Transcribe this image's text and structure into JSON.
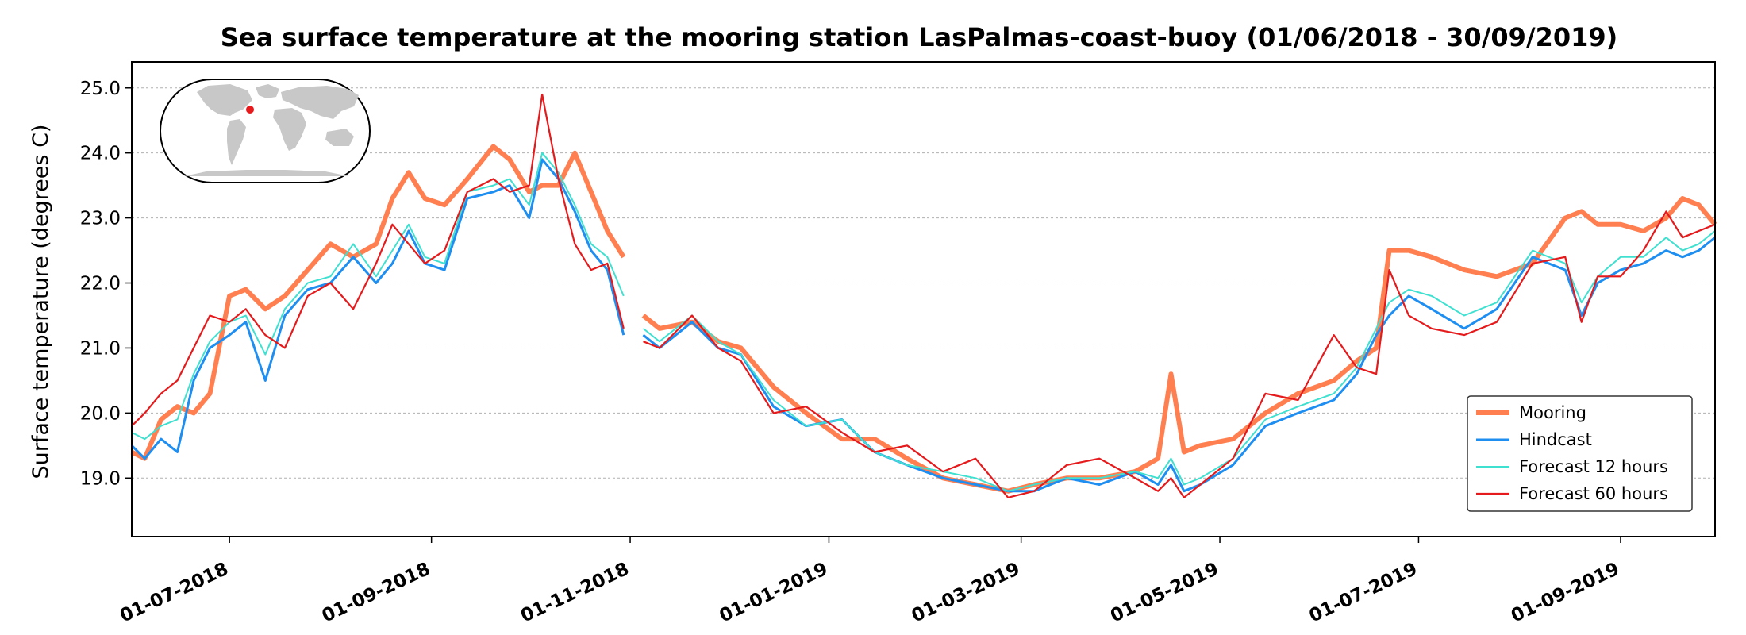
{
  "chart_data": {
    "type": "line",
    "title": "Sea surface temperature at the mooring station LasPalmas-coast-buoy (01/06/2018 - 30/09/2019)",
    "ylabel": "Surface temperature (degrees C)",
    "xlabel": "",
    "xlim": [
      "2018-06-01",
      "2019-09-30"
    ],
    "ylim": [
      18.1,
      25.4
    ],
    "yticks": [
      19.0,
      20.0,
      21.0,
      22.0,
      23.0,
      24.0,
      25.0
    ],
    "ytick_labels": [
      "19.0",
      "20.0",
      "21.0",
      "22.0",
      "23.0",
      "24.0",
      "25.0"
    ],
    "xticks": [
      "2018-07-01",
      "2018-09-01",
      "2018-11-01",
      "2019-01-01",
      "2019-03-01",
      "2019-05-01",
      "2019-07-01",
      "2019-09-01"
    ],
    "xtick_labels": [
      "01-07-2018",
      "01-09-2018",
      "01-11-2018",
      "01-01-2019",
      "01-03-2019",
      "01-05-2019",
      "01-07-2019",
      "01-09-2019"
    ],
    "grid": "horizontal dotted",
    "legend_position": "lower right",
    "inset_map": {
      "marker": "Las Palmas (Canary Islands)",
      "marker_color": "#e41a1c"
    },
    "series": [
      {
        "name": "Mooring",
        "color": "#ff7f50",
        "x": [
          "2018-06-01",
          "2018-06-05",
          "2018-06-10",
          "2018-06-15",
          "2018-06-20",
          "2018-06-25",
          "2018-07-01",
          "2018-07-06",
          "2018-07-12",
          "2018-07-18",
          "2018-07-25",
          "2018-08-01",
          "2018-08-08",
          "2018-08-15",
          "2018-08-20",
          "2018-08-25",
          "2018-08-30",
          "2018-09-05",
          "2018-09-12",
          "2018-09-20",
          "2018-09-25",
          "2018-10-01",
          "2018-10-05",
          "2018-10-10",
          "2018-10-15",
          "2018-10-20",
          "2018-10-25",
          "2018-10-30",
          null,
          "2018-11-05",
          "2018-11-10",
          "2018-11-20",
          "2018-11-28",
          "2018-12-05",
          "2018-12-15",
          "2018-12-25",
          "2019-01-05",
          "2019-01-15",
          "2019-01-25",
          "2019-02-05",
          "2019-02-15",
          "2019-02-25",
          "2019-03-05",
          "2019-03-15",
          "2019-03-25",
          "2019-04-05",
          "2019-04-12",
          "2019-04-16",
          "2019-04-20",
          "2019-04-25",
          "2019-05-05",
          "2019-05-15",
          "2019-05-25",
          "2019-06-05",
          "2019-06-12",
          "2019-06-18",
          "2019-06-22",
          "2019-06-28",
          "2019-07-05",
          "2019-07-15",
          "2019-07-25",
          "2019-08-05",
          "2019-08-15",
          "2019-08-20",
          "2019-08-25",
          "2019-09-01",
          "2019-09-08",
          "2019-09-15",
          "2019-09-20",
          "2019-09-25",
          "2019-09-30"
        ],
        "y": [
          19.4,
          19.3,
          19.9,
          20.1,
          20.0,
          20.3,
          21.8,
          21.9,
          21.6,
          21.8,
          22.2,
          22.6,
          22.4,
          22.6,
          23.3,
          23.7,
          23.3,
          23.2,
          23.6,
          24.1,
          23.9,
          23.4,
          23.5,
          23.5,
          24.0,
          23.4,
          22.8,
          22.4,
          null,
          21.5,
          21.3,
          21.4,
          21.1,
          21.0,
          20.4,
          20.0,
          19.6,
          19.6,
          19.3,
          19.0,
          18.9,
          18.8,
          18.9,
          19.0,
          19.0,
          19.1,
          19.3,
          20.6,
          19.4,
          19.5,
          19.6,
          20.0,
          20.3,
          20.5,
          20.8,
          21.0,
          22.5,
          22.5,
          22.4,
          22.2,
          22.1,
          22.3,
          23.0,
          23.1,
          22.9,
          22.9,
          22.8,
          23.0,
          23.3,
          23.2,
          22.9
        ]
      },
      {
        "name": "Hindcast",
        "color": "#1f8ef1",
        "x": [
          "2018-06-01",
          "2018-06-05",
          "2018-06-10",
          "2018-06-15",
          "2018-06-20",
          "2018-06-25",
          "2018-07-01",
          "2018-07-06",
          "2018-07-12",
          "2018-07-18",
          "2018-07-25",
          "2018-08-01",
          "2018-08-08",
          "2018-08-15",
          "2018-08-20",
          "2018-08-25",
          "2018-08-30",
          "2018-09-05",
          "2018-09-12",
          "2018-09-20",
          "2018-09-25",
          "2018-10-01",
          "2018-10-05",
          "2018-10-10",
          "2018-10-15",
          "2018-10-20",
          "2018-10-25",
          "2018-10-30",
          null,
          "2018-11-05",
          "2018-11-10",
          "2018-11-20",
          "2018-11-28",
          "2018-12-05",
          "2018-12-15",
          "2018-12-25",
          "2019-01-05",
          "2019-01-15",
          "2019-01-25",
          "2019-02-05",
          "2019-02-15",
          "2019-02-25",
          "2019-03-05",
          "2019-03-15",
          "2019-03-25",
          "2019-04-05",
          "2019-04-12",
          "2019-04-16",
          "2019-04-20",
          "2019-04-25",
          "2019-05-05",
          "2019-05-15",
          "2019-05-25",
          "2019-06-05",
          "2019-06-12",
          "2019-06-18",
          "2019-06-22",
          "2019-06-28",
          "2019-07-05",
          "2019-07-15",
          "2019-07-25",
          "2019-08-05",
          "2019-08-15",
          "2019-08-20",
          "2019-08-25",
          "2019-09-01",
          "2019-09-08",
          "2019-09-15",
          "2019-09-20",
          "2019-09-25",
          "2019-09-30"
        ],
        "y": [
          19.5,
          19.3,
          19.6,
          19.4,
          20.5,
          21.0,
          21.2,
          21.4,
          20.5,
          21.5,
          21.9,
          22.0,
          22.4,
          22.0,
          22.3,
          22.8,
          22.3,
          22.2,
          23.3,
          23.4,
          23.5,
          23.0,
          23.9,
          23.6,
          23.1,
          22.5,
          22.2,
          21.2,
          null,
          21.2,
          21.0,
          21.4,
          21.0,
          20.9,
          20.1,
          19.8,
          19.9,
          19.4,
          19.2,
          19.0,
          18.9,
          18.8,
          18.8,
          19.0,
          18.9,
          19.1,
          18.9,
          19.2,
          18.8,
          18.9,
          19.2,
          19.8,
          20.0,
          20.2,
          20.6,
          21.2,
          21.5,
          21.8,
          21.6,
          21.3,
          21.6,
          22.4,
          22.2,
          21.5,
          22.0,
          22.2,
          22.3,
          22.5,
          22.4,
          22.5,
          22.7
        ]
      },
      {
        "name": "Forecast 12 hours",
        "color": "#40e0d0",
        "x": [
          "2018-06-01",
          "2018-06-05",
          "2018-06-10",
          "2018-06-15",
          "2018-06-20",
          "2018-06-25",
          "2018-07-01",
          "2018-07-06",
          "2018-07-12",
          "2018-07-18",
          "2018-07-25",
          "2018-08-01",
          "2018-08-08",
          "2018-08-15",
          "2018-08-20",
          "2018-08-25",
          "2018-08-30",
          "2018-09-05",
          "2018-09-12",
          "2018-09-20",
          "2018-09-25",
          "2018-10-01",
          "2018-10-05",
          "2018-10-10",
          "2018-10-15",
          "2018-10-20",
          "2018-10-25",
          "2018-10-30",
          null,
          "2018-11-05",
          "2018-11-10",
          "2018-11-20",
          "2018-11-28",
          "2018-12-05",
          "2018-12-15",
          "2018-12-25",
          "2019-01-05",
          "2019-01-15",
          "2019-01-25",
          "2019-02-05",
          "2019-02-15",
          "2019-02-25",
          "2019-03-05",
          "2019-03-15",
          "2019-03-25",
          "2019-04-05",
          "2019-04-12",
          "2019-04-16",
          "2019-04-20",
          "2019-04-25",
          "2019-05-05",
          "2019-05-15",
          "2019-05-25",
          "2019-06-05",
          "2019-06-12",
          "2019-06-18",
          "2019-06-22",
          "2019-06-28",
          "2019-07-05",
          "2019-07-15",
          "2019-07-25",
          "2019-08-05",
          "2019-08-15",
          "2019-08-20",
          "2019-08-25",
          "2019-09-01",
          "2019-09-08",
          "2019-09-15",
          "2019-09-20",
          "2019-09-25",
          "2019-09-30"
        ],
        "y": [
          19.7,
          19.6,
          19.8,
          19.9,
          20.6,
          21.1,
          21.4,
          21.5,
          20.9,
          21.6,
          22.0,
          22.1,
          22.6,
          22.1,
          22.5,
          22.9,
          22.4,
          22.3,
          23.4,
          23.5,
          23.6,
          23.2,
          24.0,
          23.7,
          23.2,
          22.6,
          22.4,
          21.8,
          null,
          21.3,
          21.1,
          21.5,
          21.1,
          20.9,
          20.2,
          19.8,
          19.9,
          19.4,
          19.2,
          19.1,
          19.0,
          18.8,
          18.9,
          19.0,
          19.0,
          19.1,
          19.0,
          19.3,
          18.9,
          19.0,
          19.3,
          19.9,
          20.1,
          20.3,
          20.7,
          21.3,
          21.7,
          21.9,
          21.8,
          21.5,
          21.7,
          22.5,
          22.3,
          21.7,
          22.1,
          22.4,
          22.4,
          22.7,
          22.5,
          22.6,
          22.8
        ]
      },
      {
        "name": "Forecast 60 hours",
        "color": "#e41a1c",
        "x": [
          "2018-06-01",
          "2018-06-05",
          "2018-06-10",
          "2018-06-15",
          "2018-06-20",
          "2018-06-25",
          "2018-07-01",
          "2018-07-06",
          "2018-07-12",
          "2018-07-18",
          "2018-07-25",
          "2018-08-01",
          "2018-08-08",
          "2018-08-15",
          "2018-08-20",
          "2018-08-25",
          "2018-08-30",
          "2018-09-05",
          "2018-09-12",
          "2018-09-20",
          "2018-09-25",
          "2018-10-01",
          "2018-10-05",
          "2018-10-10",
          "2018-10-15",
          "2018-10-20",
          "2018-10-25",
          "2018-10-30",
          null,
          "2018-11-05",
          "2018-11-10",
          "2018-11-20",
          "2018-11-28",
          "2018-12-05",
          "2018-12-15",
          "2018-12-25",
          "2019-01-05",
          "2019-01-15",
          "2019-01-25",
          "2019-02-05",
          "2019-02-15",
          "2019-02-25",
          "2019-03-05",
          "2019-03-15",
          "2019-03-25",
          "2019-04-05",
          "2019-04-12",
          "2019-04-16",
          "2019-04-20",
          "2019-04-25",
          "2019-05-05",
          "2019-05-15",
          "2019-05-25",
          "2019-06-05",
          "2019-06-12",
          "2019-06-18",
          "2019-06-22",
          "2019-06-28",
          "2019-07-05",
          "2019-07-15",
          "2019-07-25",
          "2019-08-05",
          "2019-08-15",
          "2019-08-20",
          "2019-08-25",
          "2019-09-01",
          "2019-09-08",
          "2019-09-15",
          "2019-09-20",
          "2019-09-25",
          "2019-09-30"
        ],
        "y": [
          19.8,
          20.0,
          20.3,
          20.5,
          21.0,
          21.5,
          21.4,
          21.6,
          21.2,
          21.0,
          21.8,
          22.0,
          21.6,
          22.3,
          22.9,
          22.6,
          22.3,
          22.5,
          23.4,
          23.6,
          23.4,
          23.5,
          24.9,
          23.6,
          22.6,
          22.2,
          22.3,
          21.3,
          null,
          21.1,
          21.0,
          21.5,
          21.0,
          20.8,
          20.0,
          20.1,
          19.7,
          19.4,
          19.5,
          19.1,
          19.3,
          18.7,
          18.8,
          19.2,
          19.3,
          19.0,
          18.8,
          19.0,
          18.7,
          18.9,
          19.3,
          20.3,
          20.2,
          21.2,
          20.7,
          20.6,
          22.2,
          21.5,
          21.3,
          21.2,
          21.4,
          22.3,
          22.4,
          21.4,
          22.1,
          22.1,
          22.5,
          23.1,
          22.7,
          22.8,
          22.9
        ]
      }
    ]
  }
}
